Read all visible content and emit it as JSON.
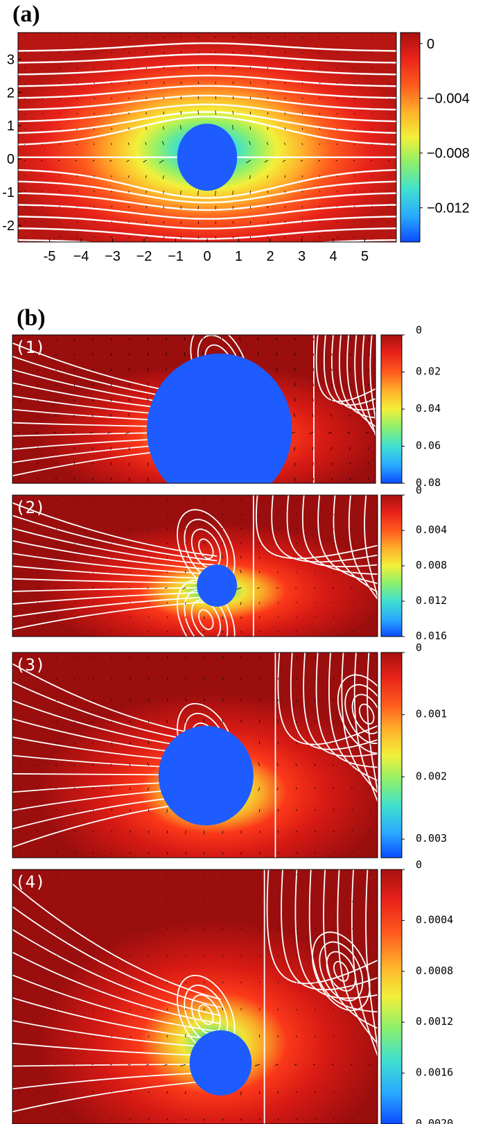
{
  "panel_a_label": "(a)",
  "panel_b_label": "(b)",
  "colors": {
    "jet": [
      "#0b4bff",
      "#2aa8ff",
      "#3fe0d0",
      "#8ef06a",
      "#f2f03a",
      "#ffb22a",
      "#ff5a1e",
      "#e8221a",
      "#a81010"
    ],
    "stream": "#ffffff",
    "arrow": "#000000",
    "obstacle": "#1e5cff"
  },
  "chart_data": [
    {
      "id": "a",
      "type": "heatmap",
      "title": "",
      "xlabel": "",
      "ylabel": "",
      "xlim": [
        -6,
        6
      ],
      "ylim": [
        -2.5,
        3.8
      ],
      "xticks": [
        "-5",
        "−4",
        "−3",
        "−2",
        "−1",
        "0",
        "1",
        "2",
        "3",
        "4",
        "5"
      ],
      "xtick_values": [
        -5,
        -4,
        -3,
        -2,
        -1,
        0,
        1,
        2,
        3,
        4,
        5
      ],
      "yticks": [
        "3",
        "2",
        "1",
        "0",
        "-1",
        "-2"
      ],
      "ytick_values": [
        3,
        2,
        1,
        0,
        -1,
        -2
      ],
      "colorbar": {
        "labels": [
          "0",
          "−0.004",
          "−0.008",
          "−0.012"
        ],
        "values": [
          0,
          -0.004,
          -0.008,
          -0.012
        ],
        "min": -0.0145,
        "max": 0.0008
      },
      "obstacle": {
        "cx": 0,
        "cy": 0.05,
        "r": 0.95
      },
      "grid": false
    },
    {
      "id": "b1",
      "label": "(1)",
      "type": "heatmap",
      "colorbar": {
        "labels": [
          "0",
          "0.02",
          "0.04",
          "0.06",
          "0.08"
        ],
        "values": [
          0,
          0.02,
          0.04,
          0.06,
          0.08
        ],
        "min": 0,
        "max": 0.08
      }
    },
    {
      "id": "b2",
      "label": "(2)",
      "type": "heatmap",
      "colorbar": {
        "labels": [
          "0",
          "0.004",
          "0.008",
          "0.012",
          "0.016"
        ],
        "values": [
          0,
          0.004,
          0.008,
          0.012,
          0.016
        ],
        "min": 0,
        "max": 0.016
      }
    },
    {
      "id": "b3",
      "label": "(3)",
      "type": "heatmap",
      "colorbar": {
        "labels": [
          "0",
          "0.001",
          "0.002",
          "0.003"
        ],
        "values": [
          0,
          0.001,
          0.002,
          0.003
        ],
        "min": 0,
        "max": 0.0033
      }
    },
    {
      "id": "b4",
      "label": "(4)",
      "type": "heatmap",
      "colorbar": {
        "labels": [
          "0",
          "0.0004",
          "0.0008",
          "0.0012",
          "0.0016",
          "0.0020"
        ],
        "values": [
          0,
          0.0004,
          0.0008,
          0.0012,
          0.0016,
          0.002
        ],
        "min": 0,
        "max": 0.002
      }
    }
  ]
}
